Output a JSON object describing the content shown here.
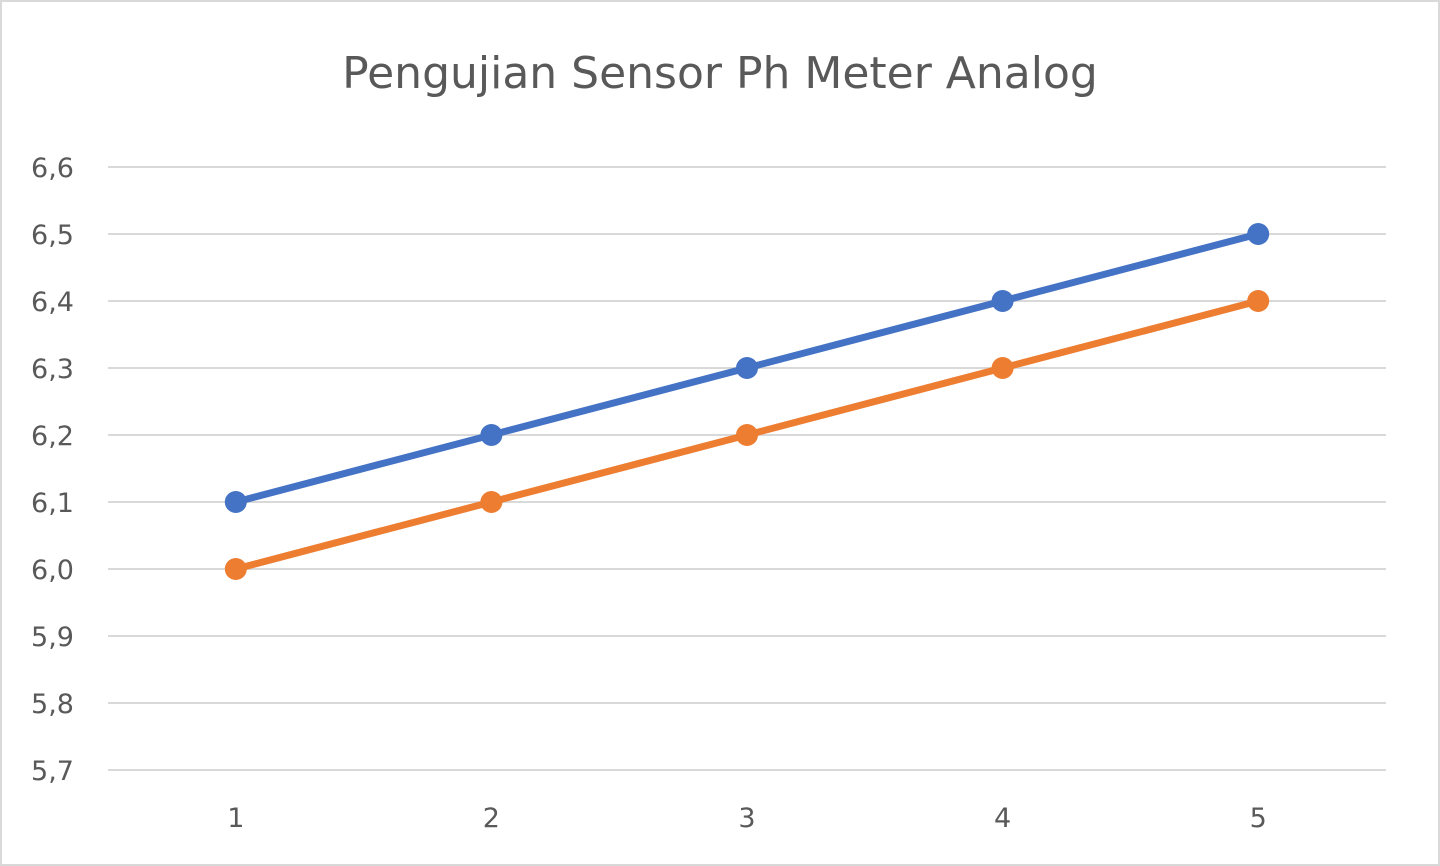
{
  "chart_data": {
    "type": "line",
    "title": "Pengujian Sensor Ph Meter Analog",
    "xlabel": "",
    "ylabel": "",
    "categories": [
      "1",
      "2",
      "3",
      "4",
      "5"
    ],
    "ylim": [
      5.7,
      6.6
    ],
    "yticks": [
      "5,7",
      "5,8",
      "5,9",
      "6,0",
      "6,1",
      "6,2",
      "6,3",
      "6,4",
      "6,5",
      "6,6"
    ],
    "grid": true,
    "legend": "none",
    "series": [
      {
        "values": [
          6.1,
          6.2,
          6.3,
          6.4,
          6.5
        ],
        "color": "#4472c4"
      },
      {
        "values": [
          6.0,
          6.1,
          6.2,
          6.3,
          6.4
        ],
        "color": "#ed7d31"
      }
    ]
  }
}
